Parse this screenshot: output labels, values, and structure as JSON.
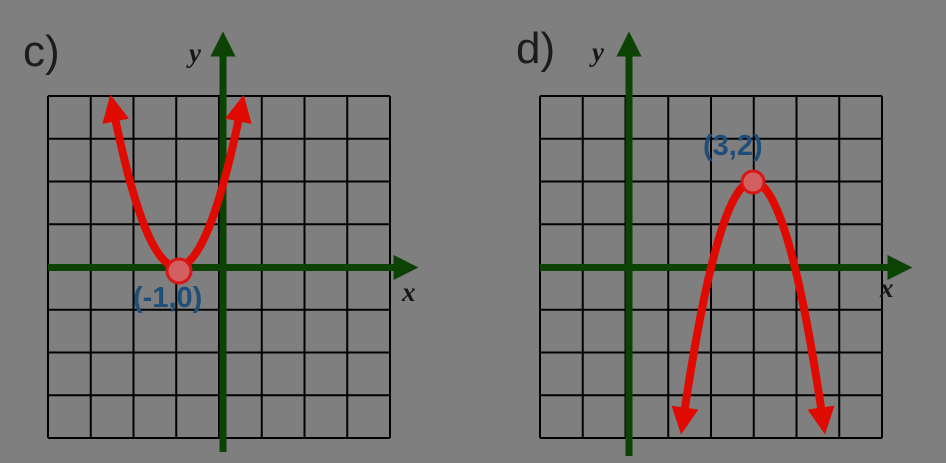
{
  "figure": {
    "background_color": "#7f7f7f",
    "panels": [
      {
        "id": "c",
        "label": "c)",
        "x_axis_label": "x",
        "y_axis_label": "y",
        "vertex_label": "(-1,0)"
      },
      {
        "id": "d",
        "label": "d)",
        "x_axis_label": "x",
        "y_axis_label": "y",
        "vertex_label": "(3,2)"
      }
    ]
  },
  "colors": {
    "background_gray": "#7f7f7f",
    "grid_black": "#000000",
    "axis_green": "#0d4205",
    "curve_red": "#df0b00",
    "point_fill": "#d26060",
    "point_stroke": "#da1515",
    "coord_label_blue": "#1f4e79",
    "text_black": "#1c1c1c"
  },
  "chart_data": [
    {
      "type": "line",
      "panel": "c)",
      "curve": "parabola",
      "opens": "up",
      "vertex": [
        -1,
        0
      ],
      "vertex_annotation": "(-1,0)",
      "x_range": [
        -4,
        4
      ],
      "y_range": [
        -4,
        4
      ],
      "grid": true,
      "grid_cells": [
        8,
        8
      ],
      "axis_labels": {
        "x": "x",
        "y": "y"
      },
      "legend": "none",
      "notes": "red parabola opening upward, vertex marked with dot on x-axis at (-1,0), arms end in arrows near top of grid"
    },
    {
      "type": "line",
      "panel": "d)",
      "curve": "parabola",
      "opens": "down",
      "vertex": [
        3,
        2
      ],
      "vertex_annotation": "(3,2)",
      "x_range": [
        -2,
        6
      ],
      "y_range": [
        -4,
        4
      ],
      "grid": true,
      "grid_cells": [
        8,
        8
      ],
      "axis_labels": {
        "x": "x",
        "y": "y"
      },
      "legend": "none",
      "notes": "red parabola opening downward, vertex marked with dot at (3,2), arms end in arrows near bottom of grid"
    }
  ]
}
